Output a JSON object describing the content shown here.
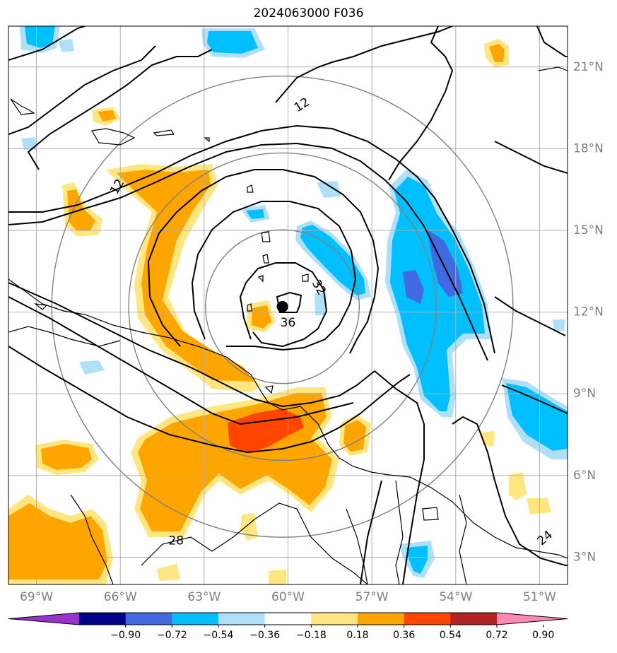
{
  "title": "2024063000 F036",
  "map": {
    "lon_range": [
      -70.0,
      -50.0
    ],
    "lat_range": [
      2.0,
      22.5
    ],
    "lon_ticks": [
      {
        "value": -69,
        "label": "69°W"
      },
      {
        "value": -66,
        "label": "66°W"
      },
      {
        "value": -63,
        "label": "63°W"
      },
      {
        "value": -60,
        "label": "60°W"
      },
      {
        "value": -57,
        "label": "57°W"
      },
      {
        "value": -54,
        "label": "54°W"
      },
      {
        "value": -51,
        "label": "51°W"
      }
    ],
    "lat_ticks": [
      {
        "value": 3,
        "label": "3°N"
      },
      {
        "value": 6,
        "label": "6°N"
      },
      {
        "value": 9,
        "label": "9°N"
      },
      {
        "value": 12,
        "label": "12°N"
      },
      {
        "value": 15,
        "label": "15°N"
      },
      {
        "value": 18,
        "label": "18°N"
      },
      {
        "value": 21,
        "label": "21°N"
      }
    ],
    "storm_center": {
      "lon": -60.2,
      "lat": 12.2
    },
    "range_ring_radii_deg": [
      2.75,
      5.5,
      8.25
    ],
    "contour_labels": [
      {
        "text": "12",
        "lon": -59.5,
        "lat": 19.6,
        "rotate": -32
      },
      {
        "text": "12",
        "lon": -66.1,
        "lat": 16.6,
        "rotate": -60
      },
      {
        "text": "32",
        "lon": -58.9,
        "lat": 12.9,
        "rotate": 60
      },
      {
        "text": "36",
        "lon": -60.0,
        "lat": 11.6,
        "rotate": 0
      },
      {
        "text": "28",
        "lon": -64.0,
        "lat": 3.6,
        "rotate": 0
      },
      {
        "text": "24",
        "lon": -50.8,
        "lat": 3.7,
        "rotate": -40
      }
    ]
  },
  "colorbar": {
    "colors": [
      "#9932cc",
      "#00008b",
      "#4169e1",
      "#00bfff",
      "#b0e0f8",
      "#ffffff",
      "#ffe680",
      "#ffa500",
      "#ff4500",
      "#b22222",
      "#ff88b0"
    ],
    "ticks": [
      "−0.90",
      "−0.72",
      "−0.54",
      "−0.36",
      "−0.18",
      "0.18",
      "0.36",
      "0.54",
      "0.72",
      "0.90"
    ]
  }
}
